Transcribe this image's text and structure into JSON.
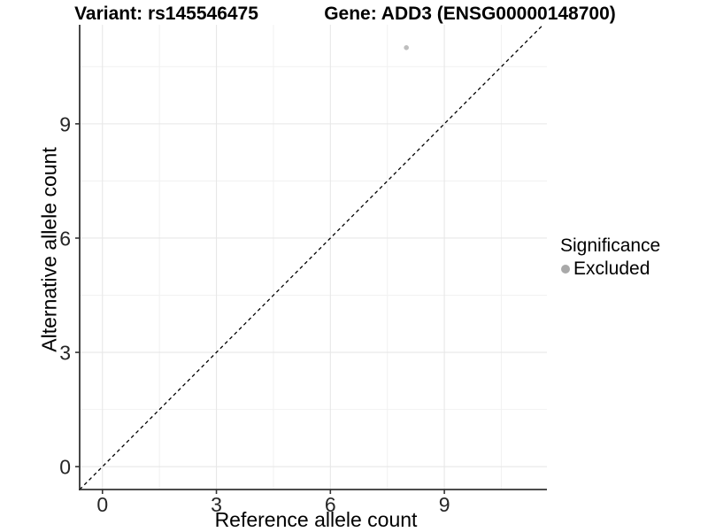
{
  "titles": {
    "variant": "Variant: rs145546475",
    "gene": "Gene: ADD3 (ENSG00000148700)"
  },
  "legend": {
    "title": "Significance",
    "items": [
      {
        "label": "Excluded",
        "color": "#A9A9A9"
      }
    ]
  },
  "colors": {
    "point": "#BEBEBE",
    "grid_major": "#E7E7E7",
    "grid_minor": "#F2F2F2",
    "axis": "#333333",
    "tick_text": "#262626",
    "identity_line": "#000000"
  },
  "chart_data": {
    "type": "scatter",
    "title_left": "Variant: rs145546475",
    "title_right": "Gene: ADD3 (ENSG00000148700)",
    "xlabel": "Reference allele count",
    "ylabel": "Alternative allele count",
    "xlim": [
      -0.6,
      11.7
    ],
    "ylim": [
      -0.6,
      11.6
    ],
    "xticks": [
      0,
      3,
      6,
      9
    ],
    "yticks": [
      0,
      3,
      6,
      9
    ],
    "minor_tick_step": 1.5,
    "grid": true,
    "legend_position": "right",
    "points": [
      {
        "x": 8,
        "y": 11,
        "significance": "Excluded"
      }
    ],
    "reference_line": {
      "kind": "identity",
      "equation": "y = x",
      "style": "dashed"
    }
  }
}
